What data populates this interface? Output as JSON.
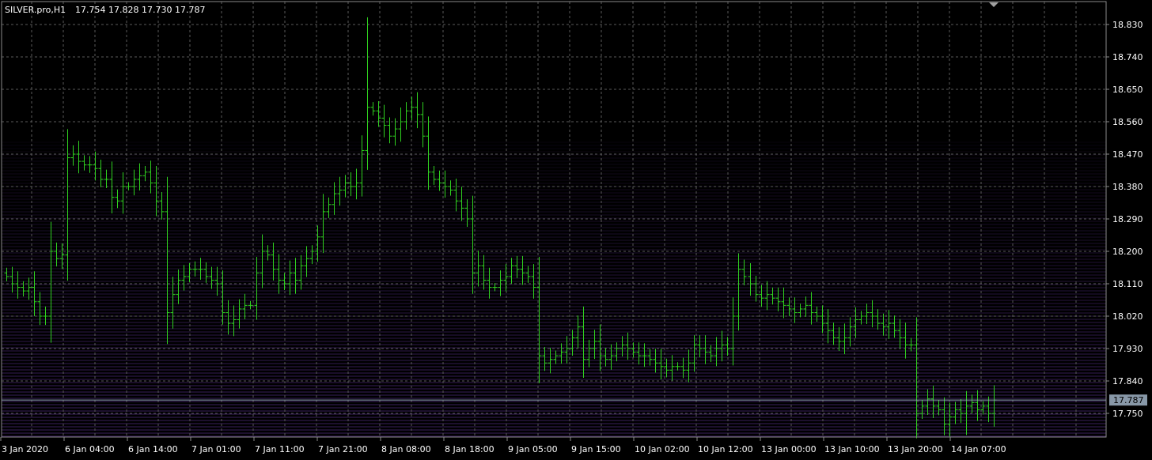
{
  "header": {
    "symbol": "SILVER.pro,H1",
    "ohlc": "17.754 17.828 17.730 17.787"
  },
  "colors": {
    "background": "#000000",
    "grid": "#5a5a5a",
    "bar": "#2fd11f",
    "price_level": "#8fa0b8",
    "price_tag_bg": "#8898a8",
    "depth_lines": "#6a3aa8",
    "text": "#ffffff"
  },
  "chart_data": {
    "type": "ohlc-bar",
    "symbol": "SILVER.pro",
    "timeframe": "H1",
    "grid": true,
    "ylim": [
      17.66,
      18.86
    ],
    "y_ticks": [
      "18.830",
      "18.740",
      "18.650",
      "18.560",
      "18.470",
      "18.380",
      "18.290",
      "18.200",
      "18.110",
      "18.020",
      "17.930",
      "17.840",
      "17.750"
    ],
    "x_ticks": [
      "3 Jan 2020",
      "6 Jan 04:00",
      "6 Jan 14:00",
      "7 Jan 01:00",
      "7 Jan 11:00",
      "7 Jan 21:00",
      "8 Jan 08:00",
      "8 Jan 18:00",
      "9 Jan 05:00",
      "9 Jan 15:00",
      "10 Jan 02:00",
      "10 Jan 12:00",
      "13 Jan 00:00",
      "13 Jan 10:00",
      "13 Jan 20:00",
      "14 Jan 07:00"
    ],
    "current_price": "17.787",
    "bars_close": [
      18.13,
      18.11,
      18.1,
      18.09,
      18.1,
      18.06,
      18.02,
      18.02,
      18.2,
      18.18,
      18.19,
      18.46,
      18.47,
      18.45,
      18.44,
      18.44,
      18.43,
      18.4,
      18.4,
      18.35,
      18.34,
      18.38,
      18.38,
      18.4,
      18.41,
      18.42,
      18.39,
      18.34,
      18.31,
      18.03,
      18.08,
      18.12,
      18.13,
      18.15,
      18.15,
      18.15,
      18.13,
      18.12,
      18.11,
      18.03,
      18.0,
      18.01,
      18.04,
      18.05,
      18.05,
      18.14,
      18.2,
      18.19,
      18.15,
      18.12,
      18.11,
      18.14,
      18.12,
      18.16,
      18.18,
      18.2,
      18.24,
      18.31,
      18.33,
      18.36,
      18.37,
      18.39,
      18.38,
      18.39,
      18.48,
      18.6,
      18.59,
      18.57,
      18.55,
      18.52,
      18.54,
      18.56,
      18.59,
      18.6,
      18.58,
      18.52,
      18.42,
      18.4,
      18.39,
      18.38,
      18.37,
      18.34,
      18.32,
      18.29,
      18.14,
      18.16,
      18.12,
      18.1,
      18.1,
      18.12,
      18.13,
      18.16,
      18.15,
      18.14,
      18.13,
      18.1,
      17.91,
      17.89,
      17.9,
      17.91,
      17.92,
      17.93,
      17.96,
      17.99,
      17.9,
      17.93,
      17.95,
      17.91,
      17.9,
      17.91,
      17.93,
      17.94,
      17.93,
      17.92,
      17.91,
      17.91,
      17.9,
      17.89,
      17.88,
      17.87,
      17.88,
      17.88,
      17.87,
      17.89,
      17.94,
      17.93,
      17.92,
      17.91,
      17.93,
      17.94,
      17.93,
      18.02,
      18.15,
      18.13,
      18.11,
      18.08,
      18.07,
      18.08,
      18.07,
      18.06,
      18.05,
      18.04,
      18.03,
      18.04,
      18.05,
      18.03,
      18.02,
      18.0,
      17.98,
      17.96,
      17.95,
      17.96,
      17.99,
      18.01,
      18.02,
      18.03,
      18.02,
      18.0,
      17.99,
      18.0,
      17.98,
      17.96,
      17.94,
      17.94,
      17.75,
      17.77,
      17.79,
      17.77,
      17.76,
      17.72,
      17.74,
      17.76,
      17.75,
      17.77,
      17.78,
      17.76,
      17.77,
      17.75,
      17.787
    ]
  }
}
